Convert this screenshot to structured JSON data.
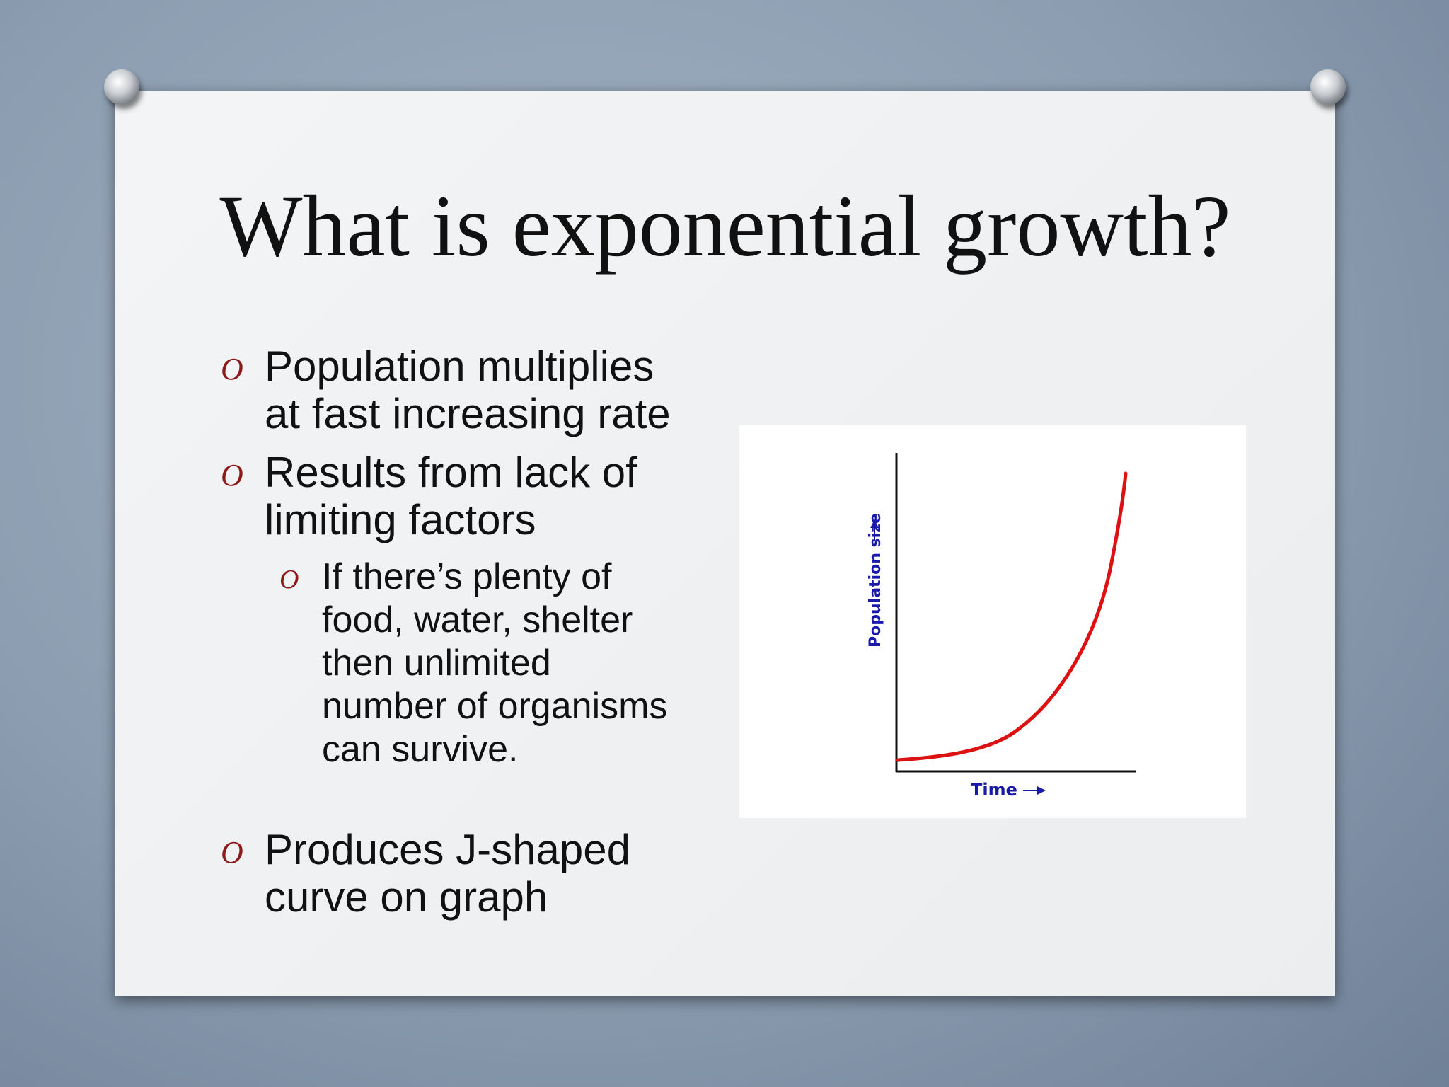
{
  "slide": {
    "title": "What is exponential growth?",
    "bullets": [
      {
        "text": "Population multiplies at fast increasing rate"
      },
      {
        "text": "Results from lack of limiting factors",
        "sub_bullets": [
          "If there’s plenty of food, water, shelter then unlimited number of organisms can survive."
        ]
      },
      {
        "text": "Produces J-shaped curve on graph"
      }
    ],
    "marker": "O",
    "figure": {
      "y_label": "Population size",
      "x_label": "Time"
    }
  }
}
